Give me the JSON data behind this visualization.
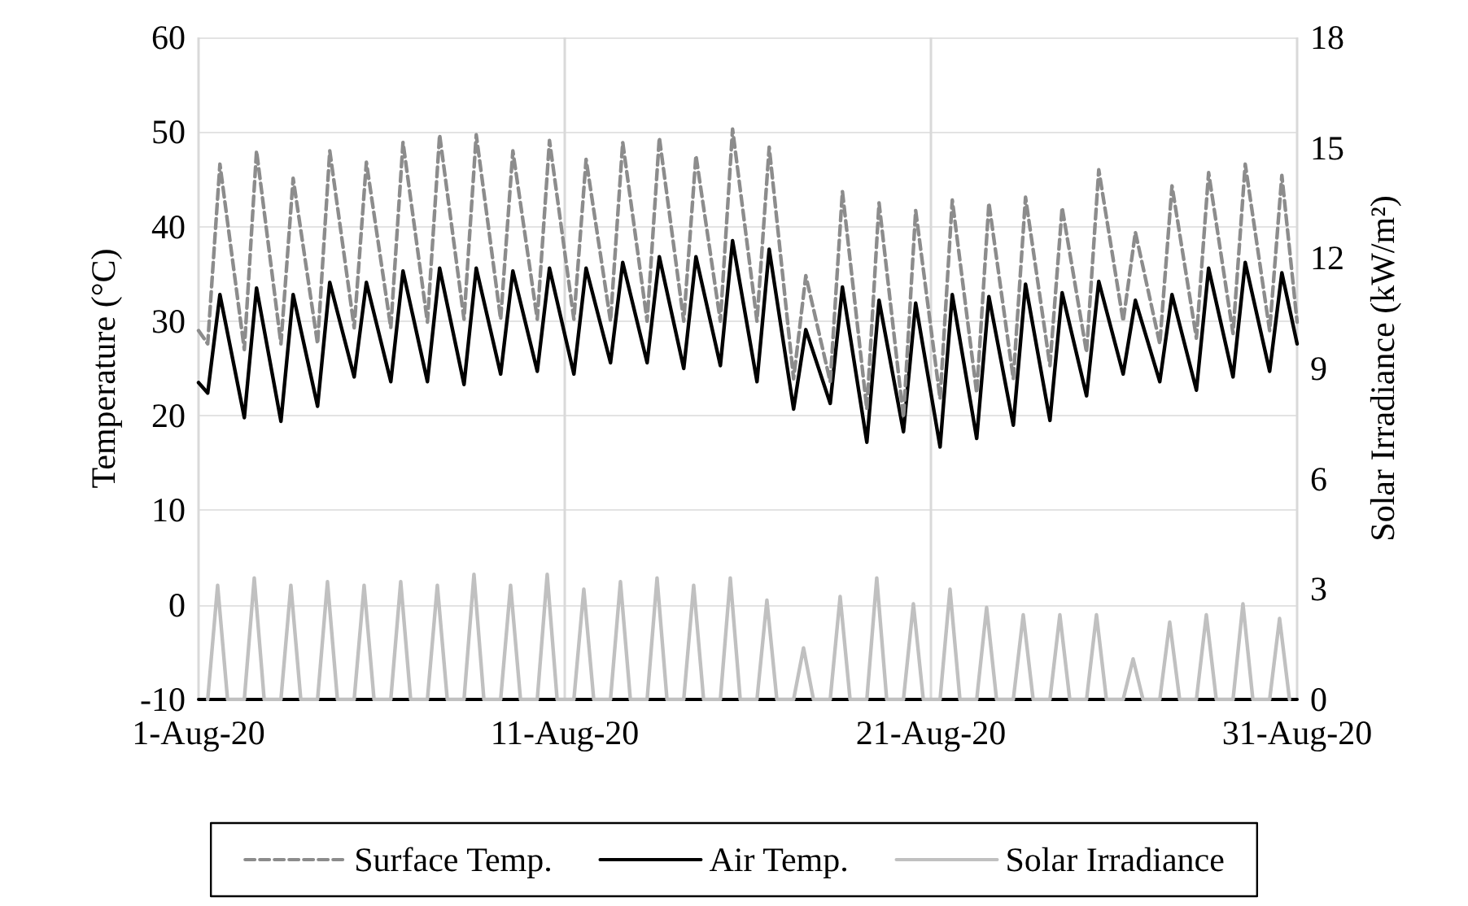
{
  "chart_data": {
    "type": "line",
    "ylabel": "Temperature (°C)",
    "y2label": "Solar Irradiance (kW/m²)",
    "xlim": [
      "--08-01",
      "--08-31"
    ],
    "xticks": [
      {
        "value": "--08-01",
        "label": "1-Aug-20"
      },
      {
        "value": "--08-11",
        "label": "11-Aug-20"
      },
      {
        "value": "--08-21",
        "label": "21-Aug-20"
      },
      {
        "value": "--08-31",
        "label": "31-Aug-20"
      }
    ],
    "ylim": [
      -10,
      60
    ],
    "yticks": [
      -10,
      0,
      10,
      20,
      30,
      40,
      50,
      60
    ],
    "y2lim": [
      0,
      18
    ],
    "y2ticks": [
      0,
      3,
      6,
      9,
      12,
      15,
      18
    ],
    "grid": true,
    "legend": "bottom",
    "marker": "none",
    "x": [
      "--08-01T00:00",
      "--08-01T06:00",
      "--08-01T14:00",
      "--08-02T06:00",
      "--08-02T14:00",
      "--08-03T06:00",
      "--08-03T14:00",
      "--08-04T06:00",
      "--08-04T14:00",
      "--08-05T06:00",
      "--08-05T14:00",
      "--08-06T06:00",
      "--08-06T14:00",
      "--08-07T06:00",
      "--08-07T14:00",
      "--08-08T06:00",
      "--08-08T14:00",
      "--08-09T06:00",
      "--08-09T14:00",
      "--08-10T06:00",
      "--08-10T14:00",
      "--08-11T06:00",
      "--08-11T14:00",
      "--08-12T06:00",
      "--08-12T14:00",
      "--08-13T06:00",
      "--08-13T14:00",
      "--08-14T06:00",
      "--08-14T14:00",
      "--08-15T06:00",
      "--08-15T14:00",
      "--08-16T06:00",
      "--08-16T14:00",
      "--08-17T06:00",
      "--08-17T14:00",
      "--08-18T06:00",
      "--08-18T14:00",
      "--08-19T06:00",
      "--08-19T14:00",
      "--08-20T06:00",
      "--08-20T14:00",
      "--08-21T06:00",
      "--08-21T14:00",
      "--08-22T06:00",
      "--08-22T14:00",
      "--08-23T06:00",
      "--08-23T14:00",
      "--08-24T06:00",
      "--08-24T14:00",
      "--08-25T06:00",
      "--08-25T14:00",
      "--08-26T06:00",
      "--08-26T14:00",
      "--08-27T06:00",
      "--08-27T14:00",
      "--08-28T06:00",
      "--08-28T14:00",
      "--08-29T06:00",
      "--08-29T14:00",
      "--08-30T06:00",
      "--08-30T14:00",
      "--08-31T00:00"
    ],
    "series": [
      {
        "name": "Surface Temp.",
        "color": "#8c8c8c",
        "line_style": "dashed",
        "values": [
          29,
          27.6,
          46.6,
          27.0,
          48,
          27.6,
          45.1,
          27.6,
          48,
          29.3,
          46.8,
          29.3,
          48.9,
          29.9,
          49.7,
          30.2,
          49.7,
          30.2,
          48,
          30.2,
          49.1,
          30.2,
          47.1,
          30,
          48.9,
          30,
          49.4,
          30,
          47.5,
          30,
          50.3,
          30,
          48.4,
          23.9,
          34.8,
          23.6,
          43.7,
          20.7,
          42.5,
          19.8,
          41.7,
          21.8,
          42.8,
          22.4,
          42.5,
          23.9,
          43.1,
          25.3,
          42,
          26.7,
          46,
          30,
          39.4,
          27.6,
          44.3,
          28.2,
          45.7,
          28.7,
          46.6,
          29,
          45.4,
          29.9
        ]
      },
      {
        "name": "Air Temp.",
        "color": "#000000",
        "line_style": "solid",
        "values": [
          23.5,
          22.4,
          32.8,
          19.8,
          33.5,
          19.4,
          32.8,
          21.0,
          34.1,
          24.1,
          34.1,
          23.6,
          35.3,
          23.6,
          35.6,
          23.3,
          35.6,
          24.4,
          35.3,
          24.7,
          35.6,
          24.4,
          35.6,
          25.6,
          36.2,
          25.6,
          36.8,
          25,
          36.8,
          25.3,
          38.5,
          23.6,
          37.6,
          20.7,
          29.1,
          21.3,
          33.6,
          17.2,
          32.2,
          18.3,
          31.9,
          16.7,
          32.8,
          17.6,
          32.6,
          19,
          33.9,
          19.5,
          33,
          22.1,
          34.2,
          24.4,
          32.2,
          23.6,
          32.8,
          22.7,
          35.6,
          24.1,
          36.2,
          24.7,
          35.1,
          27.6
        ]
      },
      {
        "name": "Solar Irradiance",
        "color": "#c0c0c0",
        "line_style": "solid",
        "axis": "y2",
        "x": [
          "--08-01T06:00",
          "--08-01T12:30",
          "--08-01T19:00",
          "--08-02T06:00",
          "--08-02T12:30",
          "--08-02T19:00",
          "--08-03T06:00",
          "--08-03T12:30",
          "--08-03T19:00",
          "--08-04T06:00",
          "--08-04T12:30",
          "--08-04T19:00",
          "--08-05T06:00",
          "--08-05T12:30",
          "--08-05T19:00",
          "--08-06T06:00",
          "--08-06T12:30",
          "--08-06T19:00",
          "--08-07T06:00",
          "--08-07T12:30",
          "--08-07T19:00",
          "--08-08T06:00",
          "--08-08T12:30",
          "--08-08T19:00",
          "--08-09T06:00",
          "--08-09T12:30",
          "--08-09T19:00",
          "--08-10T06:00",
          "--08-10T12:30",
          "--08-10T19:00",
          "--08-11T06:00",
          "--08-11T12:30",
          "--08-11T19:00",
          "--08-12T06:00",
          "--08-12T12:30",
          "--08-12T19:00",
          "--08-13T06:00",
          "--08-13T12:30",
          "--08-13T19:00",
          "--08-14T06:00",
          "--08-14T12:30",
          "--08-14T19:00",
          "--08-15T06:00",
          "--08-15T12:30",
          "--08-15T19:00",
          "--08-16T06:00",
          "--08-16T12:30",
          "--08-16T19:00",
          "--08-17T06:00",
          "--08-17T12:30",
          "--08-17T19:00",
          "--08-18T06:00",
          "--08-18T12:30",
          "--08-18T19:00",
          "--08-19T06:00",
          "--08-19T12:30",
          "--08-19T19:00",
          "--08-20T06:00",
          "--08-20T12:30",
          "--08-20T19:00",
          "--08-21T06:00",
          "--08-21T12:30",
          "--08-21T19:00",
          "--08-22T06:00",
          "--08-22T12:30",
          "--08-22T19:00",
          "--08-23T06:00",
          "--08-23T12:30",
          "--08-23T19:00",
          "--08-24T06:00",
          "--08-24T12:30",
          "--08-24T19:00",
          "--08-25T06:00",
          "--08-25T12:30",
          "--08-25T19:00",
          "--08-26T06:00",
          "--08-26T12:30",
          "--08-26T19:00",
          "--08-27T06:00",
          "--08-27T12:30",
          "--08-27T19:00",
          "--08-28T06:00",
          "--08-28T12:30",
          "--08-28T19:00",
          "--08-29T06:00",
          "--08-29T12:30",
          "--08-29T19:00",
          "--08-30T06:00",
          "--08-30T12:30",
          "--08-30T19:00"
        ],
        "values": [
          0,
          3.1,
          0,
          0,
          3.3,
          0,
          0,
          3.1,
          0,
          0,
          3.2,
          0,
          0,
          3.1,
          0,
          0,
          3.2,
          0,
          0,
          3.1,
          0,
          0,
          3.4,
          0,
          0,
          3.1,
          0,
          0,
          3.4,
          0,
          0,
          3.0,
          0,
          0,
          3.2,
          0,
          0,
          3.3,
          0,
          0,
          3.1,
          0,
          0,
          3.3,
          0,
          0,
          2.7,
          0,
          0,
          1.4,
          0,
          0,
          2.8,
          0,
          0,
          3.3,
          0,
          0,
          2.6,
          0,
          0,
          3.0,
          0,
          0,
          2.5,
          0,
          0,
          2.3,
          0,
          0,
          2.3,
          0,
          0,
          2.3,
          0,
          0,
          1.1,
          0,
          0,
          2.1,
          0,
          0,
          2.3,
          0,
          0,
          2.6,
          0,
          0,
          2.2,
          0
        ]
      }
    ]
  }
}
